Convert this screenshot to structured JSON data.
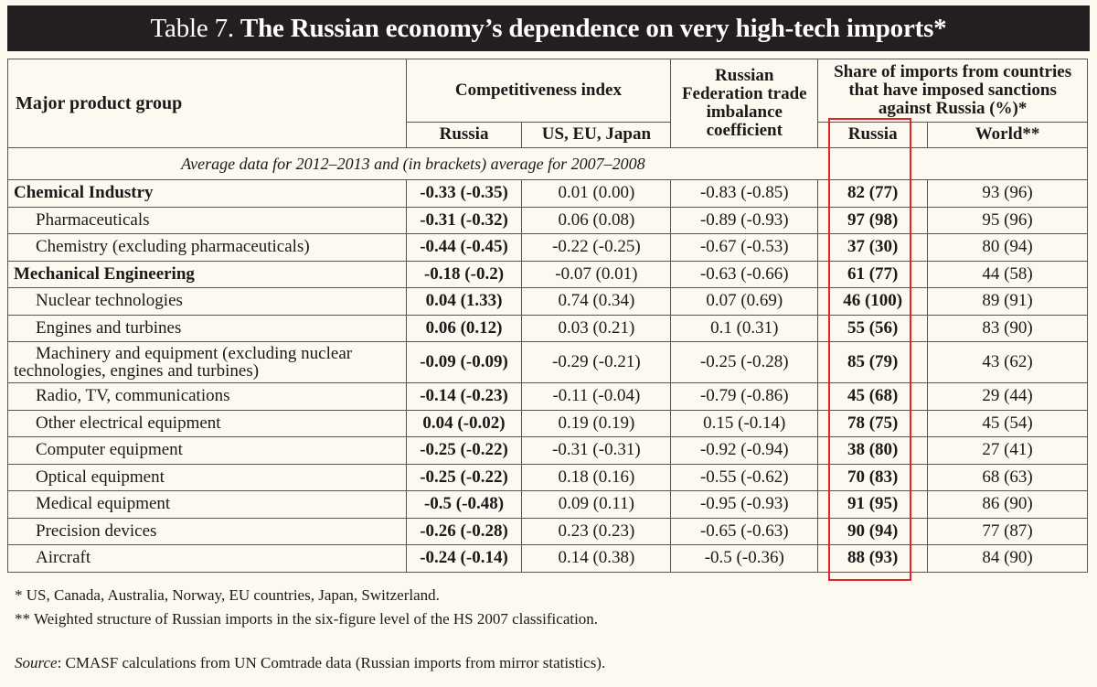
{
  "title": {
    "prefix": "Table 7.",
    "main": "The Russian economy’s dependence on very high-tech imports*"
  },
  "header": {
    "col_product": "Major product group",
    "col_competitiveness": "Competitiveness index",
    "col_imbalance": "Russian Federation trade imbalance coefficient",
    "col_share": "Share of imports from countries that have imposed sanctions against Russia (%)*",
    "sub_russia": "Russia",
    "sub_us_eu_japan": "US, EU, Japan",
    "sub_share_russia": "Russia",
    "sub_world": "World**"
  },
  "note_row": "Average data for 2012–2013 and (in brackets) average for 2007–2008",
  "rows": [
    {
      "label": "Chemical Industry",
      "ci_russia": "-0.33 (-0.35)",
      "ci_us": "0.01 (0.00)",
      "imbalance": "-0.83 (-0.85)",
      "share_russia": "82 (77)",
      "share_world": "93 (96)"
    },
    {
      "label": "Pharmaceuticals",
      "ci_russia": "-0.31 (-0.32)",
      "ci_us": "0.06 (0.08)",
      "imbalance": "-0.89 (-0.93)",
      "share_russia": "97 (98)",
      "share_world": "95 (96)"
    },
    {
      "label": "Chemistry (excluding pharmaceuticals)",
      "ci_russia": "-0.44 (-0.45)",
      "ci_us": "-0.22 (-0.25)",
      "imbalance": "-0.67 (-0.53)",
      "share_russia": "37 (30)",
      "share_world": "80 (94)"
    },
    {
      "label": "Mechanical Engineering",
      "ci_russia": "-0.18 (-0.2)",
      "ci_us": "-0.07 (0.01)",
      "imbalance": "-0.63 (-0.66)",
      "share_russia": "61 (77)",
      "share_world": "44 (58)"
    },
    {
      "label": "Nuclear technologies",
      "ci_russia": "0.04 (1.33)",
      "ci_us": "0.74 (0.34)",
      "imbalance": "0.07 (0.69)",
      "share_russia": "46 (100)",
      "share_world": "89 (91)"
    },
    {
      "label": "Engines and turbines",
      "ci_russia": "0.06 (0.12)",
      "ci_us": "0.03 (0.21)",
      "imbalance": "0.1 (0.31)",
      "share_russia": "55 (56)",
      "share_world": "83 (90)"
    },
    {
      "label": "Machinery and equipment (excluding nuclear technologies, engines and turbines)",
      "ci_russia": "-0.09 (-0.09)",
      "ci_us": "-0.29 (-0.21)",
      "imbalance": "-0.25 (-0.28)",
      "share_russia": "85 (79)",
      "share_world": "43 (62)"
    },
    {
      "label": "Radio, TV, communications",
      "ci_russia": "-0.14 (-0.23)",
      "ci_us": "-0.11 (-0.04)",
      "imbalance": "-0.79 (-0.86)",
      "share_russia": "45 (68)",
      "share_world": "29 (44)"
    },
    {
      "label": "Other electrical equipment",
      "ci_russia": "0.04 (-0.02)",
      "ci_us": "0.19 (0.19)",
      "imbalance": "0.15 (-0.14)",
      "share_russia": "78 (75)",
      "share_world": "45 (54)"
    },
    {
      "label": "Computer equipment",
      "ci_russia": "-0.25 (-0.22)",
      "ci_us": "-0.31 (-0.31)",
      "imbalance": "-0.92 (-0.94)",
      "share_russia": "38 (80)",
      "share_world": "27 (41)"
    },
    {
      "label": "Optical equipment",
      "ci_russia": "-0.25 (-0.22)",
      "ci_us": "0.18 (0.16)",
      "imbalance": "-0.55 (-0.62)",
      "share_russia": "70 (83)",
      "share_world": "68 (63)"
    },
    {
      "label": "Medical equipment",
      "ci_russia": "-0.5 (-0.48)",
      "ci_us": "0.09 (0.11)",
      "imbalance": "-0.95 (-0.93)",
      "share_russia": "91 (95)",
      "share_world": "86 (90)"
    },
    {
      "label": "Precision devices",
      "ci_russia": "-0.26 (-0.28)",
      "ci_us": "0.23 (0.23)",
      "imbalance": "-0.65 (-0.63)",
      "share_russia": "90 (94)",
      "share_world": "77 (87)"
    },
    {
      "label": "Aircraft",
      "ci_russia": "-0.24 (-0.14)",
      "ci_us": "0.14 (0.38)",
      "imbalance": "-0.5 (-0.36)",
      "share_russia": "88 (93)",
      "share_world": "84 (90)"
    }
  ],
  "footnotes": {
    "note1": "* US, Canada, Australia, Norway, EU countries, Japan, Switzerland.",
    "note2": "** Weighted structure of Russian imports in the six-figure level of the HS 2007 classification.",
    "source_label": "Source",
    "source_text": ": CMASF calculations from UN Comtrade data (Russian imports from mirror statistics)."
  },
  "colors": {
    "title_bg": "#231f20",
    "page_bg": "#fdf9f0",
    "highlight": "#e0252a"
  }
}
